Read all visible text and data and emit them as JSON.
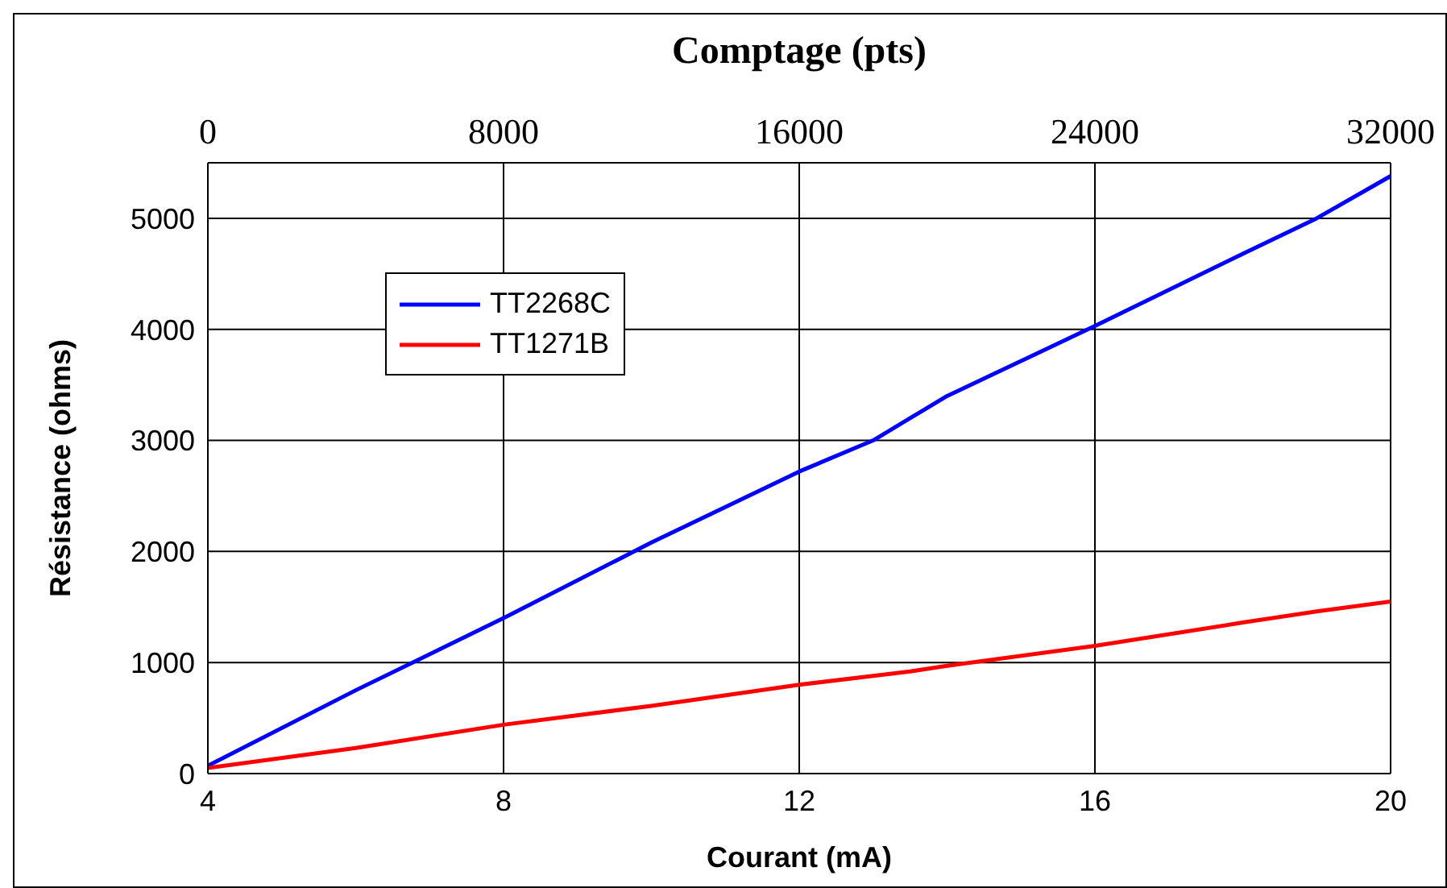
{
  "chart_data": {
    "type": "line",
    "xlabel": "Courant (mA)",
    "ylabel": "Résistance (ohms)",
    "x2label": "Comptage (pts)",
    "x": [
      4,
      6,
      8,
      10,
      12,
      13,
      13.5,
      14,
      16,
      18,
      19,
      20
    ],
    "series": [
      {
        "name": "TT2268C",
        "color": "#0000ff",
        "values": [
          70,
          750,
          1400,
          2080,
          2720,
          3000,
          3200,
          3400,
          4030,
          4680,
          5000,
          5380
        ]
      },
      {
        "name": "TT1271B",
        "color": "#ff0000",
        "values": [
          50,
          230,
          440,
          610,
          800,
          880,
          920,
          970,
          1150,
          1360,
          1460,
          1550
        ]
      }
    ],
    "xlim": [
      4,
      20
    ],
    "xticks": [
      4,
      8,
      12,
      16,
      20
    ],
    "ylim": [
      0,
      5500
    ],
    "yticks": [
      0,
      1000,
      2000,
      3000,
      4000,
      5000
    ],
    "x2lim": [
      0,
      32000
    ],
    "x2ticks": [
      0,
      8000,
      16000,
      24000,
      32000
    ],
    "grid": true,
    "legend": "top left",
    "marker": "none",
    "line_style": "solid"
  }
}
